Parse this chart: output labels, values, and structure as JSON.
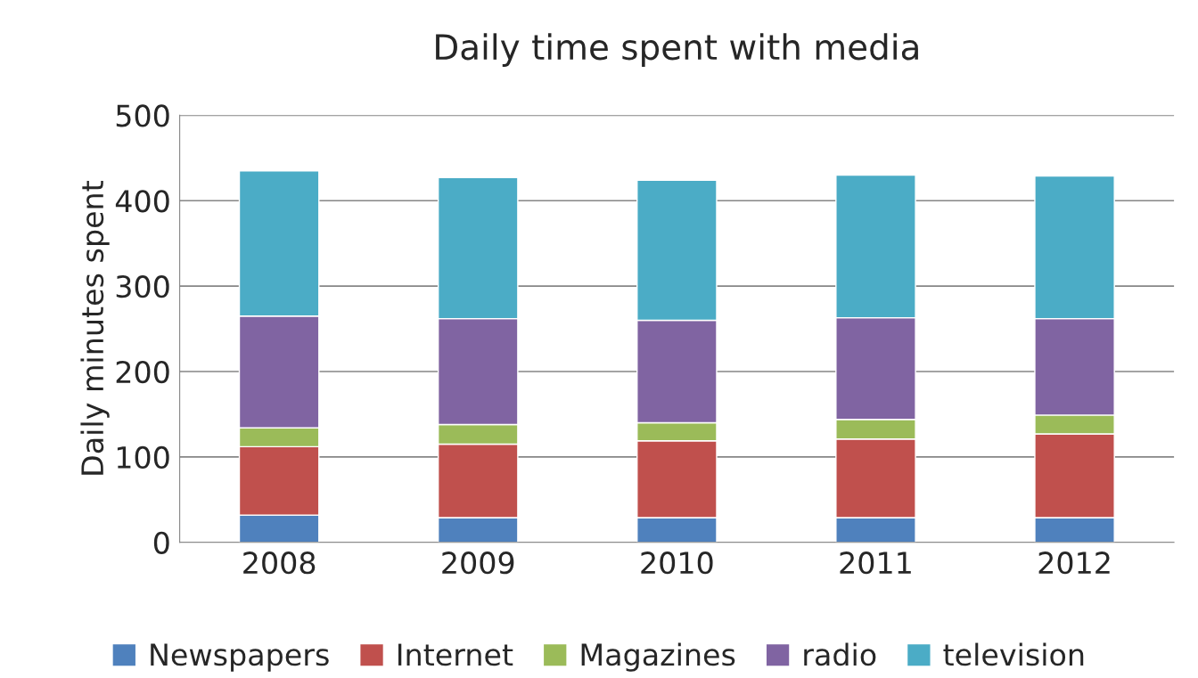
{
  "chart_data": {
    "type": "bar",
    "title": "Daily time spent with media",
    "ylabel": "Daily minutes spent",
    "categories": [
      "2008",
      "2009",
      "2010",
      "2011",
      "2012"
    ],
    "stacked": true,
    "series": [
      {
        "name": "Newspapers",
        "color": "#4f81bd",
        "values": [
          32,
          29,
          29,
          29,
          29
        ]
      },
      {
        "name": "Internet",
        "color": "#c0504d",
        "values": [
          80,
          86,
          90,
          92,
          98
        ]
      },
      {
        "name": "Magazines",
        "color": "#9bbb59",
        "values": [
          22,
          23,
          21,
          23,
          22
        ]
      },
      {
        "name": "radio",
        "color": "#8064a2",
        "values": [
          131,
          124,
          120,
          119,
          113
        ]
      },
      {
        "name": "television",
        "color": "#4bacc6",
        "values": [
          170,
          165,
          164,
          167,
          167
        ]
      }
    ],
    "ylim": [
      0,
      500
    ],
    "yticks": [
      0,
      100,
      200,
      300,
      400,
      500
    ],
    "grid": "y",
    "legend": "bottom"
  }
}
